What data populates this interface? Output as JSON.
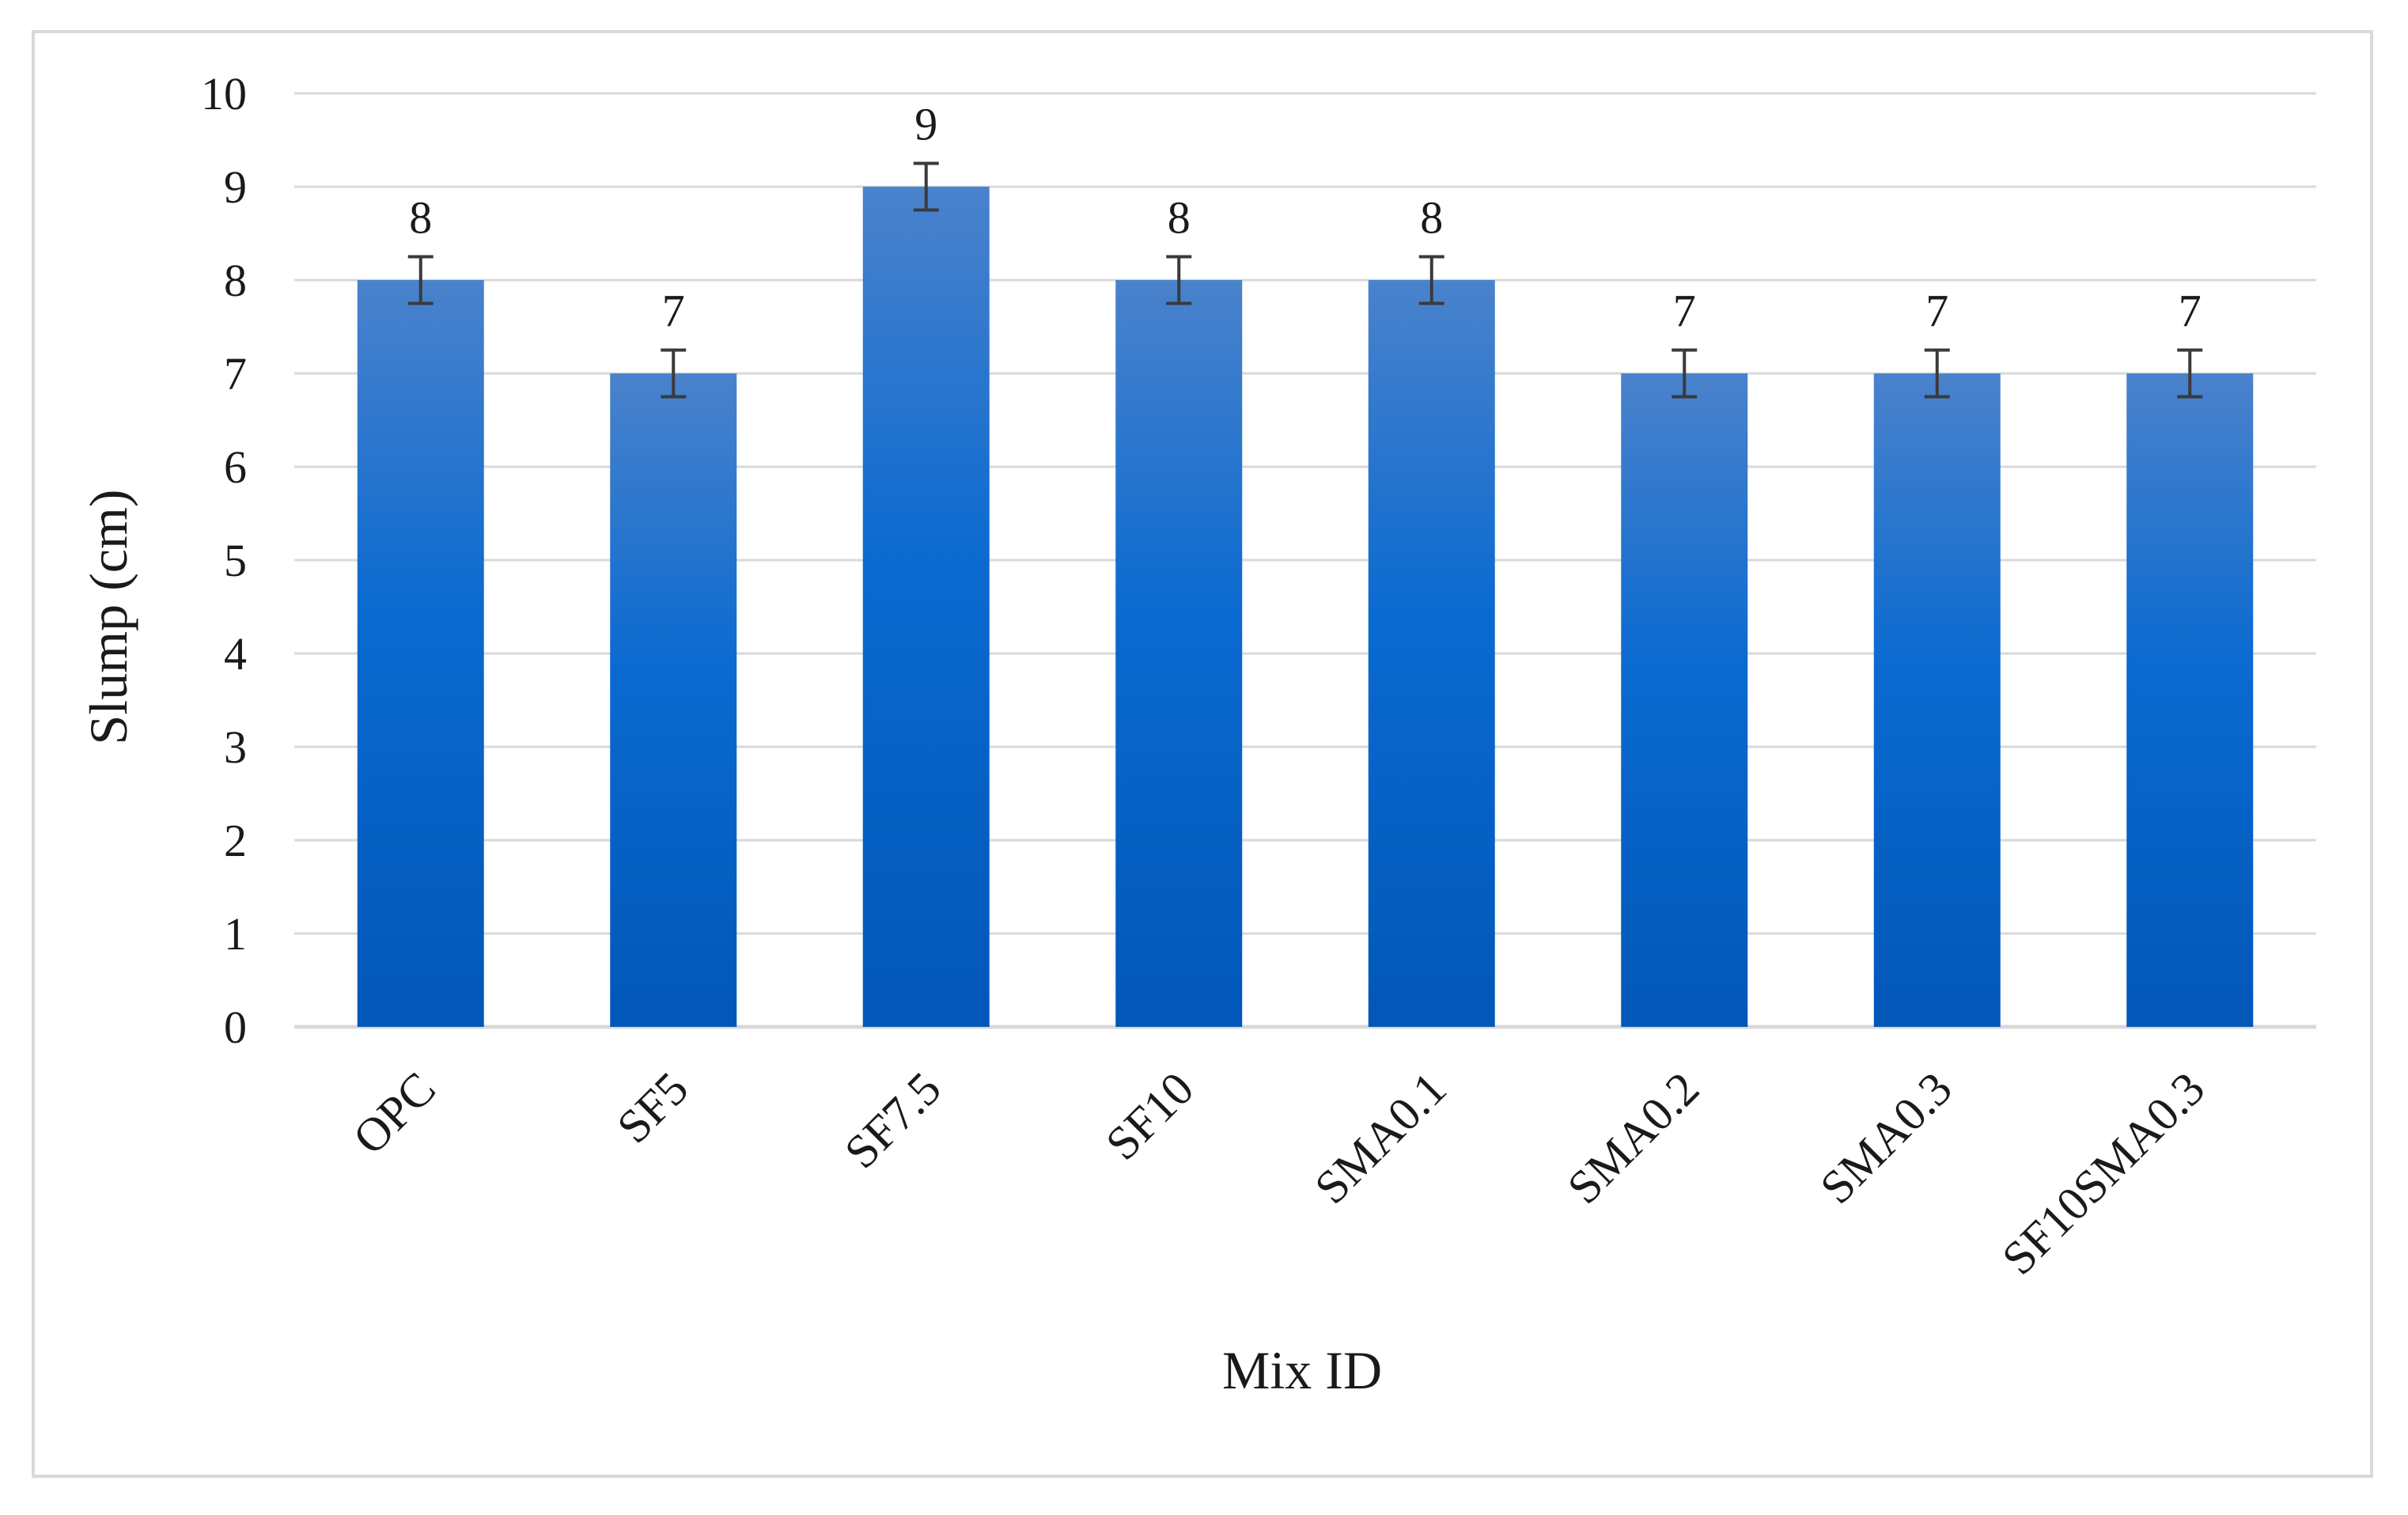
{
  "chart_data": {
    "type": "bar",
    "categories": [
      "OPC",
      "SF5",
      "SF7.5",
      "SF10",
      "SMA0.1",
      "SMA0.2",
      "SMA0.3",
      "SF10SMA0.3"
    ],
    "values": [
      8,
      7,
      9,
      8,
      8,
      7,
      7,
      7
    ],
    "error": [
      0.25,
      0.25,
      0.25,
      0.25,
      0.25,
      0.25,
      0.25,
      0.25
    ],
    "data_labels": [
      "8",
      "7",
      "9",
      "8",
      "8",
      "7",
      "7",
      "7"
    ],
    "xlabel": "Mix ID",
    "ylabel": "Slump (cm)",
    "ylim": [
      0,
      10
    ],
    "yticks": [
      0,
      1,
      2,
      3,
      4,
      5,
      6,
      7,
      8,
      9,
      10
    ],
    "grid": true,
    "legend": "none",
    "bar_color_top": "#4a82cc",
    "bar_color_mid": "#0a6ad0",
    "bar_color_bottom": "#0257b8",
    "grid_color": "#d9d9d9",
    "error_color": "#3a3a3a"
  }
}
